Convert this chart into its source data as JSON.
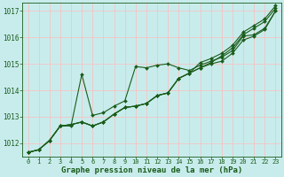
{
  "title": "Graphe pression niveau de la mer (hPa)",
  "xlabel_fontsize": 6.5,
  "bg_color": "#c8ecec",
  "grid_color": "#f0c8c8",
  "line_color": "#1a5c1a",
  "xlim_min": -0.5,
  "xlim_max": 23.5,
  "ylim_min": 1011.5,
  "ylim_max": 1017.3,
  "yticks": [
    1012,
    1013,
    1014,
    1015,
    1016,
    1017
  ],
  "xticks": [
    0,
    1,
    2,
    3,
    4,
    5,
    6,
    7,
    8,
    9,
    10,
    11,
    12,
    13,
    14,
    15,
    16,
    17,
    18,
    19,
    20,
    21,
    22,
    23
  ],
  "series": [
    [
      1011.65,
      1011.75,
      1012.1,
      1012.65,
      1012.65,
      1014.6,
      1013.05,
      1013.15,
      1013.4,
      1013.6,
      1014.9,
      1014.85,
      1014.95,
      1015.0,
      1014.85,
      1014.75,
      1014.95,
      1015.1,
      1015.25,
      1015.5,
      1016.05,
      1016.1,
      1016.35,
      1017.0
    ],
    [
      1011.65,
      1011.75,
      1012.1,
      1012.65,
      1012.7,
      1012.8,
      1012.65,
      1012.8,
      1013.1,
      1013.35,
      1013.4,
      1013.5,
      1013.8,
      1013.9,
      1014.45,
      1014.65,
      1014.85,
      1015.0,
      1015.1,
      1015.4,
      1015.9,
      1016.05,
      1016.3,
      1017.0
    ],
    [
      1011.65,
      1011.75,
      1012.1,
      1012.65,
      1012.7,
      1012.8,
      1012.65,
      1012.8,
      1013.1,
      1013.35,
      1013.4,
      1013.5,
      1013.8,
      1013.9,
      1014.45,
      1014.65,
      1014.85,
      1015.05,
      1015.3,
      1015.6,
      1016.1,
      1016.35,
      1016.6,
      1017.1
    ],
    [
      1011.65,
      1011.75,
      1012.1,
      1012.65,
      1012.7,
      1012.8,
      1012.65,
      1012.8,
      1013.1,
      1013.35,
      1013.4,
      1013.5,
      1013.8,
      1013.9,
      1014.45,
      1014.65,
      1015.05,
      1015.2,
      1015.4,
      1015.7,
      1016.2,
      1016.45,
      1016.7,
      1017.2
    ]
  ]
}
